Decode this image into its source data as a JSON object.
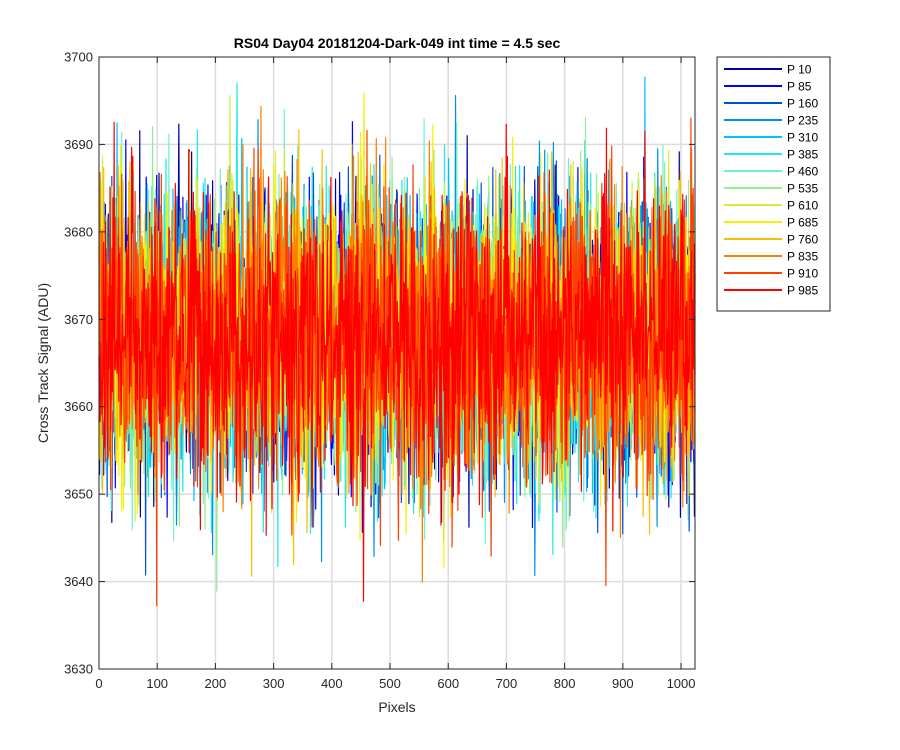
{
  "chart_data": {
    "type": "line",
    "title": "RS04 Day04 20181204-Dark-049 int time = 4.5 sec",
    "xlabel": "Pixels",
    "ylabel": "Cross Track Signal (ADU)",
    "xlim": [
      0,
      1024
    ],
    "ylim": [
      3630,
      3700
    ],
    "xticks": [
      0,
      100,
      200,
      300,
      400,
      500,
      600,
      700,
      800,
      900,
      1000
    ],
    "yticks": [
      3630,
      3640,
      3650,
      3660,
      3670,
      3680,
      3690,
      3700
    ],
    "grid": true,
    "legend_position": "outside-right-top",
    "noise_model": {
      "mean": 3668,
      "std": 8,
      "n_points": 1024,
      "min": 3636,
      "max": 3699
    },
    "series": [
      {
        "name": "P 10",
        "color": "#0000a8"
      },
      {
        "name": "P 85",
        "color": "#0000ff"
      },
      {
        "name": "P 160",
        "color": "#0050e0"
      },
      {
        "name": "P 235",
        "color": "#0090e8"
      },
      {
        "name": "P 310",
        "color": "#00c0ff"
      },
      {
        "name": "P 385",
        "color": "#20e8e8"
      },
      {
        "name": "P 460",
        "color": "#70f0d0"
      },
      {
        "name": "P 535",
        "color": "#90f090"
      },
      {
        "name": "P 610",
        "color": "#d0f040"
      },
      {
        "name": "P 685",
        "color": "#f8f000"
      },
      {
        "name": "P 760",
        "color": "#f8c000"
      },
      {
        "name": "P 835",
        "color": "#ff8000"
      },
      {
        "name": "P 910",
        "color": "#ff4000"
      },
      {
        "name": "P 985",
        "color": "#ff0000"
      }
    ]
  }
}
